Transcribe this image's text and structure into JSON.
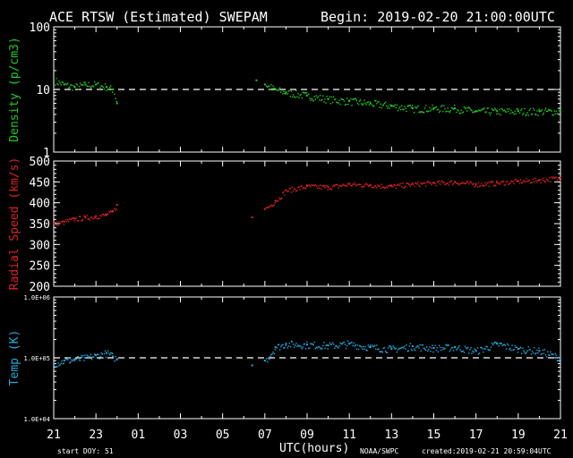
{
  "header": {
    "title": "ACE RTSW (Estimated) SWEPAM",
    "begin": "Begin: 2019-02-20 21:00:00UTC"
  },
  "footer": {
    "start_doy": "start DOY:  51",
    "xlabel": "UTC(hours)",
    "source": "NOAA/SWPC",
    "created": "created:2019-02-21 20:59:04UTC"
  },
  "colors": {
    "background": "#000000",
    "axes": "#ffffff",
    "density": "#22cc22",
    "speed": "#dd2222",
    "temp": "#22aadd"
  },
  "chart_data": [
    {
      "type": "scatter",
      "name": "density",
      "ylabel": "Density  (p/cm3)",
      "yscale": "log",
      "ylim": [
        1,
        100
      ],
      "yticks": [
        1,
        10,
        100
      ],
      "reference_line": 10,
      "x_unit": "hours since 2019-02-20 21:00 UTC",
      "xlim": [
        0,
        24
      ],
      "xtick_labels": [
        "21",
        "23",
        "01",
        "03",
        "05",
        "07",
        "09",
        "11",
        "13",
        "15",
        "17",
        "19",
        "21"
      ],
      "segments": [
        {
          "x": [
            0,
            0.5,
            1.0,
            1.5,
            2.0,
            2.5,
            2.8,
            3.0
          ],
          "y": [
            14,
            12,
            11,
            12,
            12,
            11,
            10,
            6
          ]
        },
        {
          "x": [
            9.6
          ],
          "y": [
            14
          ]
        },
        {
          "x": [
            10.0,
            10.5,
            11,
            12,
            13,
            14,
            15,
            16,
            17,
            18,
            19,
            20,
            21,
            22,
            23,
            24
          ],
          "y": [
            12,
            10,
            9,
            8,
            7,
            6.5,
            6,
            5.5,
            5,
            5,
            5,
            4.5,
            4.5,
            4.5,
            4.5,
            4.5
          ]
        }
      ]
    },
    {
      "type": "scatter",
      "name": "speed",
      "ylabel": "Radial Speed  (km/s)",
      "yscale": "linear",
      "ylim": [
        200,
        500
      ],
      "yticks": [
        200,
        250,
        300,
        350,
        400,
        450,
        500
      ],
      "xlim": [
        0,
        24
      ],
      "segments": [
        {
          "x": [
            0,
            0.5,
            1.0,
            1.5,
            2.0,
            2.5,
            2.8,
            3.0
          ],
          "y": [
            350,
            355,
            362,
            365,
            368,
            372,
            380,
            395
          ]
        },
        {
          "x": [
            9.4
          ],
          "y": [
            365
          ]
        },
        {
          "x": [
            10.0,
            10.5,
            11,
            12,
            13,
            14,
            15,
            16,
            17,
            18,
            19,
            20,
            21,
            22,
            23,
            24
          ],
          "y": [
            385,
            405,
            430,
            440,
            438,
            445,
            443,
            440,
            445,
            448,
            450,
            445,
            448,
            452,
            455,
            460
          ]
        }
      ]
    },
    {
      "type": "scatter",
      "name": "temp",
      "ylabel": "Temp  (K)",
      "yscale": "log",
      "ylim": [
        10000,
        1000000
      ],
      "ytick_labels": [
        "1.0E+04",
        "1.0E+05",
        "1.0E+06"
      ],
      "yticks": [
        10000,
        100000,
        1000000
      ],
      "reference_line": 100000,
      "xlim": [
        0,
        24
      ],
      "segments": [
        {
          "x": [
            0,
            0.5,
            1.0,
            1.5,
            2.0,
            2.5,
            2.8,
            3.0
          ],
          "y": [
            80000,
            90000,
            95000,
            100000,
            110000,
            120000,
            105000,
            95000
          ]
        },
        {
          "x": [
            9.4
          ],
          "y": [
            75000
          ]
        },
        {
          "x": [
            10.0,
            10.5,
            11,
            12,
            13,
            14,
            15,
            16,
            17,
            18,
            19,
            20,
            21,
            22,
            23,
            24
          ],
          "y": [
            90000,
            150000,
            170000,
            165000,
            160000,
            170000,
            150000,
            140000,
            155000,
            145000,
            150000,
            130000,
            170000,
            140000,
            130000,
            100000
          ]
        }
      ]
    }
  ]
}
